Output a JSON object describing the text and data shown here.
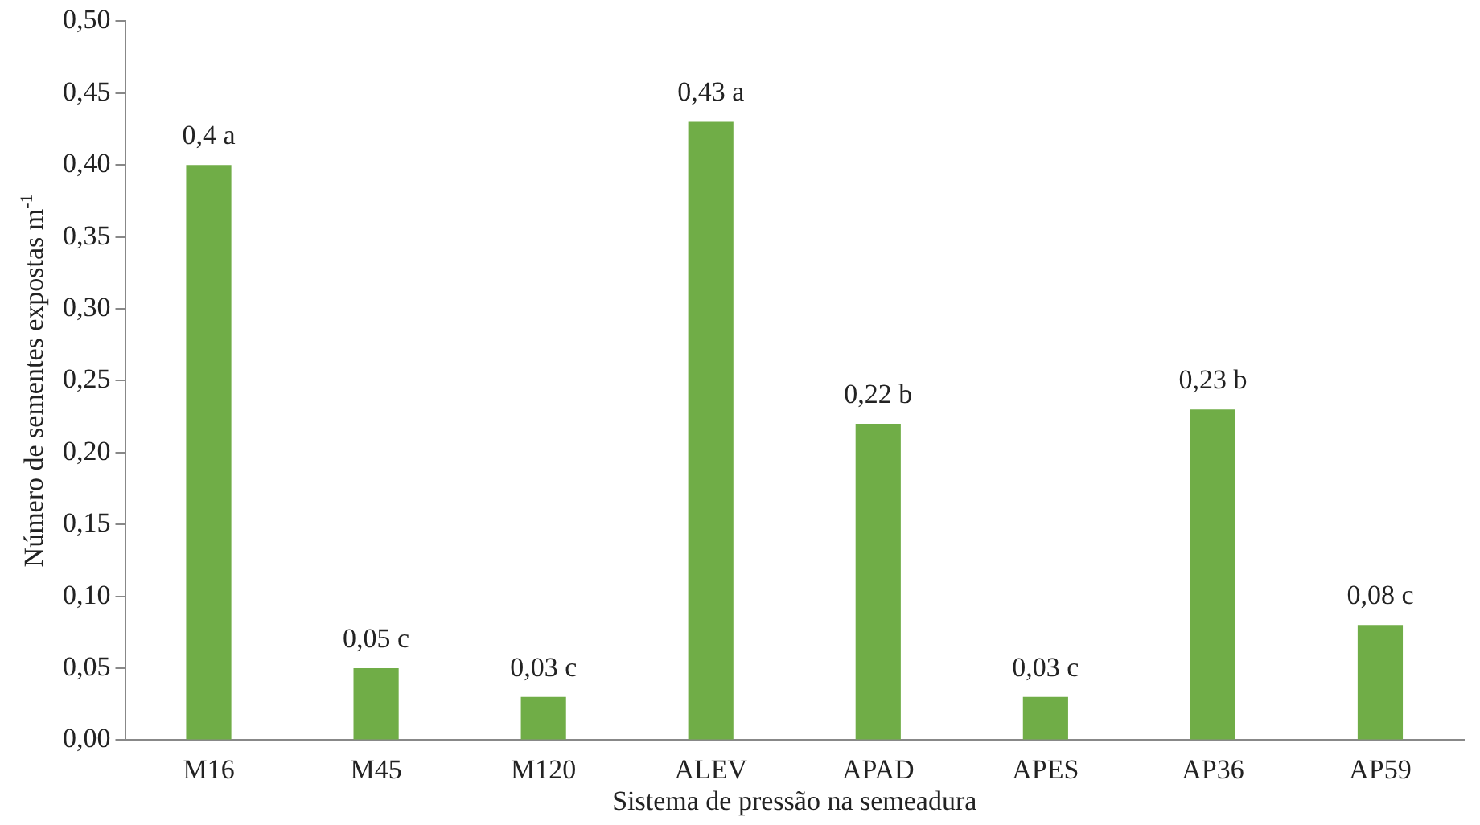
{
  "chart_data": {
    "type": "bar",
    "xlabel": "Sistema de pressão na semeadura",
    "ylabel": "Número de sementes expostas m$^{-1}$",
    "categories": [
      "M16",
      "M45",
      "M120",
      "ALEV",
      "APAD",
      "APES",
      "AP36",
      "AP59"
    ],
    "values": [
      0.4,
      0.05,
      0.03,
      0.43,
      0.22,
      0.03,
      0.23,
      0.08
    ],
    "value_labels": [
      "0,4 a",
      "0,05 c",
      "0,03 c",
      "0,43 a",
      "0,22 b",
      "0,03 c",
      "0,23 b",
      "0,08 c"
    ],
    "color": "#70ad47",
    "ylim": [
      0,
      0.5
    ],
    "yticks": [
      {
        "value": 0,
        "label": "0,00"
      },
      {
        "value": 0.05,
        "label": "0,05"
      },
      {
        "value": 0.1,
        "label": "0,10"
      },
      {
        "value": 0.15,
        "label": "0,15"
      },
      {
        "value": 0.2,
        "label": "0,20"
      },
      {
        "value": 0.25,
        "label": "0,25"
      },
      {
        "value": 0.3,
        "label": "0,30"
      },
      {
        "value": 0.35,
        "label": "0,35"
      },
      {
        "value": 0.4,
        "label": "0,40"
      },
      {
        "value": 0.45,
        "label": "0,45"
      },
      {
        "value": 0.5,
        "label": "0,50"
      }
    ],
    "grid": false,
    "legend": false
  }
}
